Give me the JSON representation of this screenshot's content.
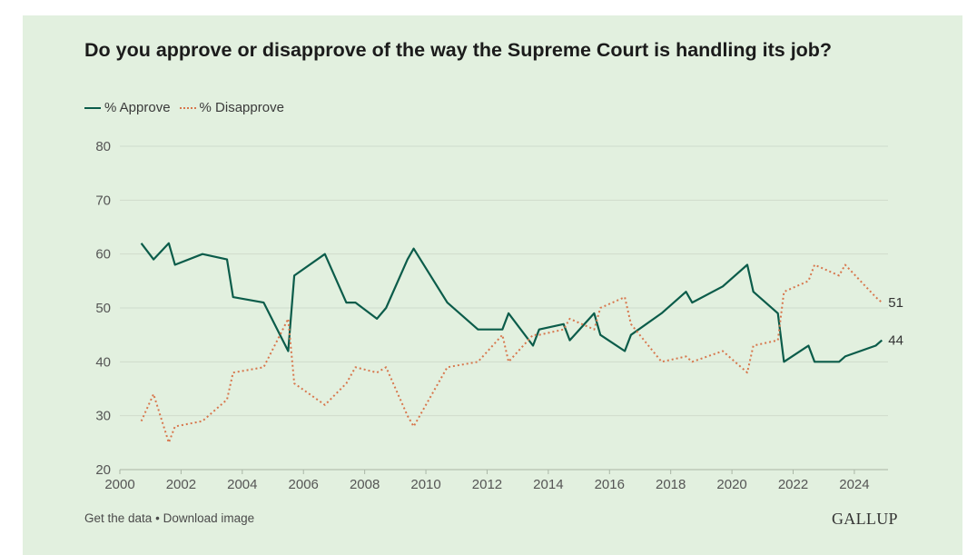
{
  "title": "Do you approve or disapprove of the way the Supreme Court is handling its job?",
  "footer": {
    "get_data": "Get the data",
    "separator": "•",
    "download": "Download image"
  },
  "logo_text": "GALLUP",
  "colors": {
    "background": "#e2f0df",
    "approve": "#0b5c4a",
    "disapprove": "#d7774d",
    "grid": "#cfdccc"
  },
  "chart_data": {
    "type": "line",
    "title": "Do you approve or disapprove of the way the Supreme Court is handling its job?",
    "xlabel": "",
    "ylabel": "",
    "xlim": [
      2000,
      2025.1
    ],
    "ylim": [
      20,
      80
    ],
    "x_ticks": [
      "2000",
      "2002",
      "2004",
      "2006",
      "2008",
      "2010",
      "2012",
      "2014",
      "2016",
      "2018",
      "2020",
      "2022",
      "2024"
    ],
    "y_ticks": [
      "20",
      "30",
      "40",
      "50",
      "60",
      "70",
      "80"
    ],
    "grid": true,
    "legend_position": "top-left",
    "series": [
      {
        "name": "% Approve",
        "style": "solid",
        "end_label": "44",
        "points": [
          [
            2000.7,
            62
          ],
          [
            2001.1,
            59
          ],
          [
            2001.6,
            62
          ],
          [
            2001.8,
            58
          ],
          [
            2002.7,
            60
          ],
          [
            2003.5,
            59
          ],
          [
            2003.7,
            52
          ],
          [
            2004.7,
            51
          ],
          [
            2005.5,
            42
          ],
          [
            2005.7,
            56
          ],
          [
            2006.7,
            60
          ],
          [
            2007.4,
            51
          ],
          [
            2007.7,
            51
          ],
          [
            2008.4,
            48
          ],
          [
            2008.7,
            50
          ],
          [
            2009.4,
            59
          ],
          [
            2009.6,
            61
          ],
          [
            2010.7,
            51
          ],
          [
            2011.7,
            46
          ],
          [
            2012.5,
            46
          ],
          [
            2012.7,
            49
          ],
          [
            2013.5,
            43
          ],
          [
            2013.7,
            46
          ],
          [
            2014.5,
            47
          ],
          [
            2014.7,
            44
          ],
          [
            2015.5,
            49
          ],
          [
            2015.7,
            45
          ],
          [
            2016.5,
            42
          ],
          [
            2016.7,
            45
          ],
          [
            2017.7,
            49
          ],
          [
            2018.5,
            53
          ],
          [
            2018.7,
            51
          ],
          [
            2019.7,
            54
          ],
          [
            2020.5,
            58
          ],
          [
            2020.7,
            53
          ],
          [
            2021.5,
            49
          ],
          [
            2021.7,
            40
          ],
          [
            2022.5,
            43
          ],
          [
            2022.7,
            40
          ],
          [
            2023.5,
            40
          ],
          [
            2023.7,
            41
          ],
          [
            2024.7,
            43
          ],
          [
            2024.9,
            44
          ]
        ]
      },
      {
        "name": "% Disapprove",
        "style": "dotted",
        "end_label": "51",
        "points": [
          [
            2000.7,
            29
          ],
          [
            2001.1,
            34
          ],
          [
            2001.6,
            25
          ],
          [
            2001.8,
            28
          ],
          [
            2002.7,
            29
          ],
          [
            2003.5,
            33
          ],
          [
            2003.7,
            38
          ],
          [
            2004.7,
            39
          ],
          [
            2005.5,
            48
          ],
          [
            2005.7,
            36
          ],
          [
            2006.7,
            32
          ],
          [
            2007.4,
            36
          ],
          [
            2007.7,
            39
          ],
          [
            2008.4,
            38
          ],
          [
            2008.7,
            39
          ],
          [
            2009.4,
            30
          ],
          [
            2009.6,
            28
          ],
          [
            2010.7,
            39
          ],
          [
            2011.7,
            40
          ],
          [
            2012.5,
            45
          ],
          [
            2012.7,
            40
          ],
          [
            2013.5,
            45
          ],
          [
            2013.7,
            45
          ],
          [
            2014.5,
            46
          ],
          [
            2014.7,
            48
          ],
          [
            2015.5,
            46
          ],
          [
            2015.7,
            50
          ],
          [
            2016.5,
            52
          ],
          [
            2016.7,
            47
          ],
          [
            2017.7,
            40
          ],
          [
            2018.5,
            41
          ],
          [
            2018.7,
            40
          ],
          [
            2019.7,
            42
          ],
          [
            2020.5,
            38
          ],
          [
            2020.7,
            43
          ],
          [
            2021.5,
            44
          ],
          [
            2021.7,
            53
          ],
          [
            2022.5,
            55
          ],
          [
            2022.7,
            58
          ],
          [
            2023.5,
            56
          ],
          [
            2023.7,
            58
          ],
          [
            2024.7,
            52
          ],
          [
            2024.9,
            51
          ]
        ]
      }
    ]
  }
}
